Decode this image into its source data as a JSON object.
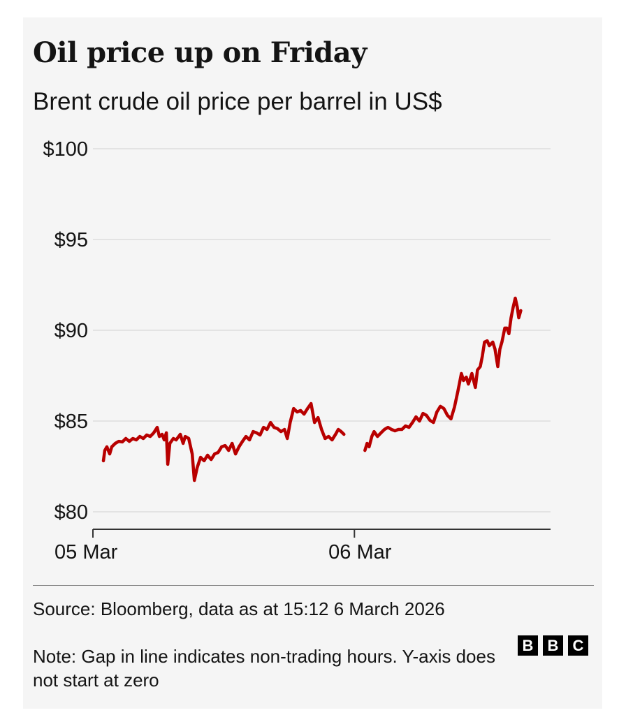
{
  "chart_data": {
    "type": "line",
    "title": "Oil price up on Friday",
    "subtitle": "Brent crude oil price per barrel in US$",
    "xlabel": "",
    "ylabel": "",
    "x_unit": "hours since 00:00 05 Mar",
    "xlim": [
      0,
      42
    ],
    "ylim": [
      80,
      100
    ],
    "yticks": [
      100,
      95,
      90,
      85,
      80
    ],
    "ytick_labels": [
      "$100",
      "$95",
      "$90",
      "$85",
      "$80"
    ],
    "xticks": [
      0,
      24
    ],
    "xtick_labels": [
      "05 Mar",
      "06 Mar"
    ],
    "grid": true,
    "line_color": "#b80000",
    "series": [
      {
        "name": "Brent crude 05 Mar",
        "x": [
          0.96,
          1.09,
          1.28,
          1.54,
          1.73,
          2.05,
          2.37,
          2.7,
          3.02,
          3.34,
          3.66,
          3.98,
          4.3,
          4.62,
          4.94,
          5.26,
          5.58,
          5.9,
          6.1,
          6.35,
          6.55,
          6.74,
          6.87,
          7.06,
          7.38,
          7.64,
          8.02,
          8.28,
          8.47,
          8.79,
          9.11,
          9.31,
          9.56,
          9.88,
          10.2,
          10.52,
          10.85,
          11.17,
          11.49,
          11.81,
          12.13,
          12.45,
          12.77,
          13.09,
          13.41,
          13.73,
          14.05,
          14.37,
          14.7,
          15.02,
          15.34,
          15.66,
          15.98,
          16.3,
          16.62,
          16.94,
          17.26,
          17.58,
          17.84,
          18.1,
          18.42,
          18.74,
          19.06,
          19.38,
          19.7,
          20.02,
          20.34,
          20.66,
          20.98,
          21.31,
          21.63,
          21.95,
          22.27,
          22.52,
          22.78,
          23.04
        ],
        "values": [
          82.81,
          83.38,
          83.58,
          83.19,
          83.58,
          83.77,
          83.88,
          83.85,
          84.04,
          83.88,
          84.04,
          83.96,
          84.15,
          84.04,
          84.23,
          84.15,
          84.35,
          84.65,
          84.15,
          84.27,
          83.96,
          84.35,
          82.62,
          83.77,
          84.04,
          83.96,
          84.27,
          83.77,
          84.15,
          84.04,
          83.19,
          81.73,
          82.42,
          83.0,
          82.81,
          83.12,
          82.88,
          83.19,
          83.27,
          83.58,
          83.65,
          83.38,
          83.77,
          83.19,
          83.58,
          83.88,
          84.15,
          83.96,
          84.42,
          84.35,
          84.23,
          84.65,
          84.54,
          84.92,
          84.65,
          84.58,
          84.42,
          84.54,
          84.04,
          84.92,
          85.69,
          85.5,
          85.58,
          85.38,
          85.69,
          85.96,
          84.92,
          85.19,
          84.54,
          84.04,
          84.15,
          83.96,
          84.27,
          84.54,
          84.42,
          84.27
        ]
      },
      {
        "name": "Brent crude 06 Mar",
        "x": [
          24.96,
          25.16,
          25.35,
          25.6,
          25.8,
          26.12,
          26.44,
          26.76,
          27.08,
          27.4,
          27.72,
          28.04,
          28.36,
          28.69,
          29.01,
          29.33,
          29.65,
          29.97,
          30.29,
          30.61,
          30.93,
          31.25,
          31.57,
          31.89,
          32.21,
          32.54,
          32.86,
          33.18,
          33.5,
          33.82,
          34.01,
          34.27,
          34.46,
          34.78,
          35.1,
          35.29,
          35.55,
          35.74,
          35.94,
          36.19,
          36.38,
          36.7,
          36.9,
          37.16,
          37.35,
          37.54,
          37.8,
          37.99,
          38.18,
          38.38,
          38.57,
          38.76,
          38.95,
          39.08,
          39.27
        ],
        "values": [
          83.38,
          83.77,
          83.58,
          84.15,
          84.42,
          84.15,
          84.35,
          84.54,
          84.65,
          84.54,
          84.46,
          84.54,
          84.54,
          84.73,
          84.65,
          84.92,
          85.23,
          85.0,
          85.42,
          85.31,
          85.04,
          84.92,
          85.5,
          85.81,
          85.69,
          85.31,
          85.12,
          85.77,
          86.65,
          87.62,
          87.23,
          87.42,
          87.04,
          87.62,
          86.85,
          87.81,
          88.0,
          88.58,
          89.35,
          89.42,
          89.15,
          89.35,
          88.96,
          88.0,
          88.96,
          89.35,
          90.12,
          90.12,
          89.81,
          90.69,
          91.27,
          91.77,
          91.27,
          90.69,
          91.08
        ]
      }
    ]
  },
  "footer": {
    "source": "Source: Bloomberg, data as at 15:12 6 March 2026",
    "note": "Note: Gap in line indicates non-trading hours. Y-axis does not start at zero",
    "logo_letters": [
      "B",
      "B",
      "C"
    ]
  }
}
